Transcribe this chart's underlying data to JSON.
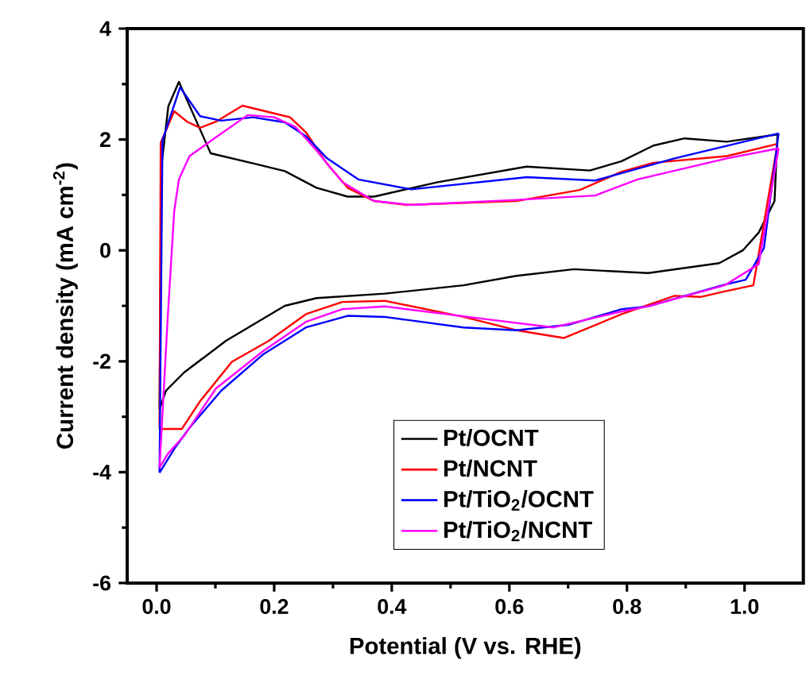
{
  "chart_data": {
    "type": "line",
    "xlabel": "Potential (V vs. RHE)",
    "ylabel": "Current density (mA cm$^{-2}$)",
    "xlim": [
      -0.05,
      1.1
    ],
    "ylim": [
      -6,
      4
    ],
    "xticks": [
      {
        "value": 0,
        "label": "0.0"
      },
      0.2,
      0.4,
      0.6,
      0.8,
      {
        "value": 1,
        "label": "1.0"
      }
    ],
    "yticks": [
      -6,
      -4,
      -2,
      0,
      2,
      4
    ],
    "legend": "bottom",
    "marker": "none",
    "line_style": "solid",
    "series": [
      {
        "name": "Pt/OCNT",
        "color": "#000000",
        "x": [
          0.005,
          0.008,
          0.02,
          0.038,
          0.092,
          0.164,
          0.218,
          0.272,
          0.325,
          0.37,
          0.478,
          0.629,
          0.737,
          0.791,
          0.845,
          0.898,
          0.97,
          1.056
        ],
        "values": [
          -2.86,
          1.5,
          2.6,
          3.04,
          1.75,
          1.57,
          1.43,
          1.13,
          0.97,
          0.97,
          1.23,
          1.51,
          1.44,
          1.61,
          1.89,
          2.02,
          1.96,
          2.09
        ]
      },
      {
        "color": "#000000",
        "x": [
          0.005,
          0.016,
          0.047,
          0.118,
          0.218,
          0.272,
          0.388,
          0.522,
          0.612,
          0.71,
          0.836,
          0.957,
          0.997,
          1.024,
          1.051,
          1.056
        ],
        "values": [
          -2.86,
          -2.53,
          -2.2,
          -1.63,
          -1.0,
          -0.86,
          -0.78,
          -0.63,
          -0.46,
          -0.34,
          -0.41,
          -0.23,
          0,
          0.32,
          0.89,
          2.09
        ]
      },
      {
        "name": "Pt/NCNT",
        "color": "#ff0000",
        "x": [
          0.005,
          0.007,
          0.03,
          0.052,
          0.074,
          0.101,
          0.146,
          0.2,
          0.227,
          0.254,
          0.29,
          0.325,
          0.37,
          0.424,
          0.612,
          0.72,
          0.791,
          0.845,
          0.97,
          1.056
        ],
        "values": [
          -3.22,
          1.94,
          2.51,
          2.32,
          2.21,
          2.32,
          2.61,
          2.47,
          2.4,
          2.13,
          1.56,
          1.13,
          0.89,
          0.82,
          0.89,
          1.09,
          1.42,
          1.58,
          1.7,
          1.92
        ]
      },
      {
        "color": "#ff0000",
        "x": [
          0.005,
          0.007,
          0.043,
          0.074,
          0.128,
          0.191,
          0.254,
          0.316,
          0.388,
          0.522,
          0.612,
          0.693,
          0.791,
          0.881,
          0.925,
          0.966,
          1.015,
          1.056
        ],
        "values": [
          -3.22,
          -3.22,
          -3.22,
          -2.72,
          -2.01,
          -1.63,
          -1.15,
          -0.93,
          -0.91,
          -1.2,
          -1.44,
          -1.58,
          -1.15,
          -0.82,
          -0.84,
          -0.74,
          -0.63,
          1.92
        ]
      },
      {
        "name": "Pt/TiO$_{2}$/OCNT",
        "color": "#0000ff",
        "x": [
          0.005,
          0.01,
          0.04,
          0.074,
          0.11,
          0.164,
          0.218,
          0.254,
          0.29,
          0.343,
          0.433,
          0.63,
          0.746,
          0.881,
          1.058
        ],
        "values": [
          -4.01,
          1.99,
          2.94,
          2.42,
          2.34,
          2.4,
          2.31,
          2.06,
          1.66,
          1.28,
          1.1,
          1.32,
          1.26,
          1.66,
          2.11
        ]
      },
      {
        "color": "#0000ff",
        "x": [
          0.005,
          0.03,
          0.056,
          0.11,
          0.182,
          0.254,
          0.325,
          0.388,
          0.522,
          0.612,
          0.702,
          0.791,
          0.836,
          0.962,
          1.002,
          1.033,
          1.058
        ],
        "values": [
          -4.01,
          -3.58,
          -3.2,
          -2.53,
          -1.87,
          -1.39,
          -1.18,
          -1.2,
          -1.39,
          -1.44,
          -1.34,
          -1.06,
          -1.01,
          -0.63,
          -0.53,
          0.04,
          2.11
        ]
      },
      {
        "name": "Pt/TiO$_{2}$/NCNT",
        "color": "#ff00ff",
        "x": [
          0.005,
          0.019,
          0.03,
          0.038,
          0.056,
          0.101,
          0.155,
          0.2,
          0.236,
          0.272,
          0.316,
          0.37,
          0.433,
          0.612,
          0.746,
          0.818,
          0.97,
          1.058
        ],
        "values": [
          -3.92,
          -1.2,
          0.71,
          1.28,
          1.7,
          2.04,
          2.44,
          2.4,
          2.23,
          1.8,
          1.23,
          0.89,
          0.82,
          0.91,
          0.99,
          1.28,
          1.66,
          1.84
        ]
      },
      {
        "color": "#ff00ff",
        "x": [
          0.005,
          0.019,
          0.047,
          0.101,
          0.182,
          0.254,
          0.316,
          0.388,
          0.567,
          0.675,
          0.791,
          0.836,
          0.966,
          1.024,
          1.058
        ],
        "values": [
          -3.92,
          -3.67,
          -3.34,
          -2.49,
          -1.81,
          -1.29,
          -1.06,
          -1.01,
          -1.25,
          -1.39,
          -1.1,
          -1.01,
          -0.63,
          -0.25,
          1.84
        ]
      }
    ]
  }
}
